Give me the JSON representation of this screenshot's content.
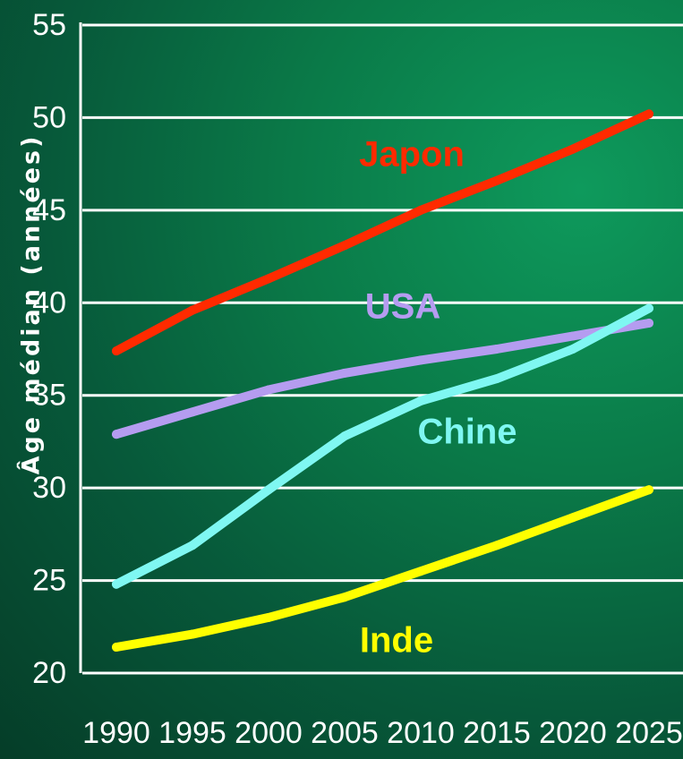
{
  "chart_data": {
    "type": "line",
    "title": "",
    "xlabel": "",
    "ylabel": "Âge médian (années)",
    "x": [
      1990,
      1995,
      2000,
      2005,
      2010,
      2015,
      2020,
      2025
    ],
    "x_tick_labels": [
      "1990",
      "1995",
      "2000",
      "2005",
      "2010",
      "2015",
      "2020",
      "2025"
    ],
    "y_ticks": [
      20,
      25,
      30,
      35,
      40,
      45,
      50,
      55
    ],
    "y_tick_labels": [
      "20",
      "25",
      "30",
      "35",
      "40",
      "45",
      "50",
      "55"
    ],
    "xlim": [
      1990,
      2025
    ],
    "ylim": [
      20,
      55
    ],
    "grid": "horizontal",
    "series": [
      {
        "name": "Japon",
        "color": "#ff2a00",
        "values": [
          37.4,
          39.6,
          41.3,
          43.1,
          45.0,
          46.6,
          48.3,
          50.2
        ]
      },
      {
        "name": "USA",
        "color": "#b59cf0",
        "values": [
          32.9,
          34.1,
          35.3,
          36.2,
          36.9,
          37.5,
          38.2,
          38.9
        ]
      },
      {
        "name": "Chine",
        "color": "#7ff7f2",
        "values": [
          24.8,
          26.9,
          29.9,
          32.8,
          34.7,
          35.9,
          37.5,
          39.7
        ]
      },
      {
        "name": "Inde",
        "color": "#ffff00",
        "values": [
          21.4,
          22.1,
          23.0,
          24.1,
          25.5,
          26.9,
          28.4,
          29.9
        ]
      }
    ]
  }
}
